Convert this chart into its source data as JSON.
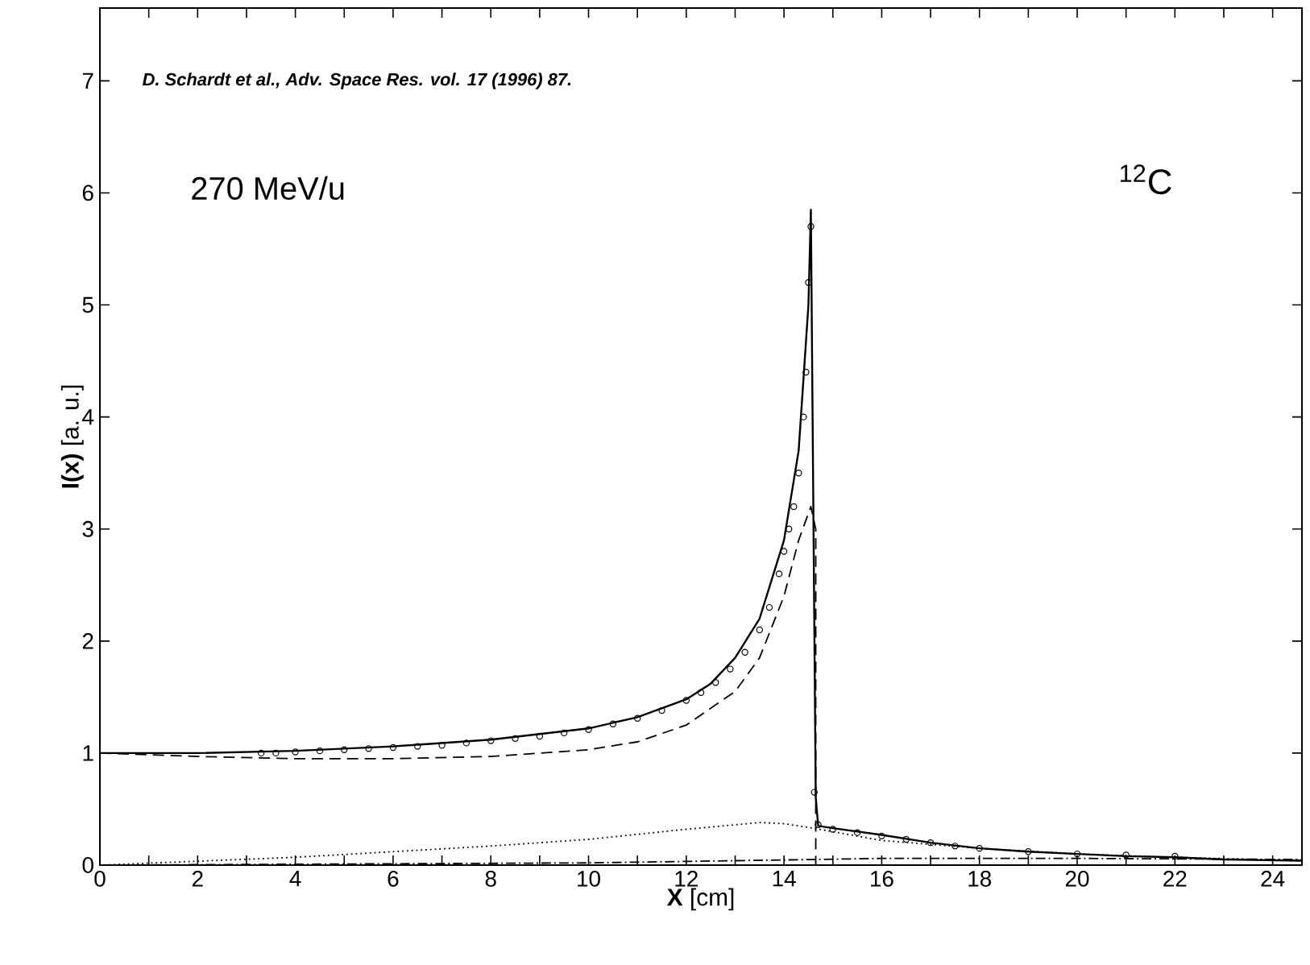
{
  "chart_data": {
    "type": "line",
    "xlabel": "**X** [cm]",
    "ylabel": "**I(x)** [a. u.]",
    "annotations": [
      "D. Schardt et al., Adv. Space Res. vol. 17 (1996) 87.",
      "270 MeV/u",
      "$^{12}$C"
    ],
    "xlim": [
      0,
      24.6
    ],
    "ylim": [
      0,
      7.65
    ],
    "xticks": [
      0,
      {
        "value": 1,
        "label": null
      },
      2,
      {
        "value": 3,
        "label": null
      },
      4,
      {
        "value": 5,
        "label": null
      },
      6,
      {
        "value": 7,
        "label": null
      },
      8,
      {
        "value": 9,
        "label": null
      },
      10,
      {
        "value": 11,
        "label": null
      },
      12,
      {
        "value": 13,
        "label": null
      },
      14,
      {
        "value": 15,
        "label": null
      },
      16,
      {
        "value": 17,
        "label": null
      },
      18,
      {
        "value": 19,
        "label": null
      },
      20,
      {
        "value": 21,
        "label": null
      },
      22,
      {
        "value": 23,
        "label": null
      },
      24
    ],
    "yticks": [
      0,
      1,
      2,
      3,
      4,
      5,
      6,
      7
    ],
    "series": [
      {
        "line_style": "solid",
        "marker": "none",
        "color": "#000000",
        "x": [
          0,
          2,
          4,
          6,
          8,
          10,
          11,
          12,
          12.5,
          13,
          13.5,
          14,
          14.3,
          14.5,
          14.55,
          14.65,
          14.7,
          15,
          16,
          17,
          18,
          19,
          20,
          21,
          22,
          23,
          24.6
        ],
        "values": [
          1.0,
          1.0,
          1.02,
          1.06,
          1.12,
          1.22,
          1.32,
          1.48,
          1.62,
          1.85,
          2.2,
          2.9,
          3.7,
          5.0,
          5.85,
          0.6,
          0.35,
          0.33,
          0.27,
          0.2,
          0.15,
          0.12,
          0.1,
          0.08,
          0.07,
          0.05,
          0.04
        ]
      },
      {
        "type": "scatter",
        "marker": "circle",
        "color": "#000000",
        "x": [
          3.3,
          3.6,
          4,
          4.5,
          5,
          5.5,
          6,
          6.5,
          7,
          7.5,
          8,
          8.5,
          9,
          9.5,
          10,
          10.5,
          11,
          11.5,
          12,
          12.3,
          12.6,
          12.9,
          13.2,
          13.5,
          13.7,
          13.9,
          14.0,
          14.1,
          14.2,
          14.3,
          14.4,
          14.45,
          14.5,
          14.55,
          14.62,
          14.7,
          15,
          15.5,
          16,
          16.5,
          17,
          17.5,
          18,
          19,
          20,
          21,
          22
        ],
        "values": [
          1.0,
          1.0,
          1.01,
          1.02,
          1.03,
          1.04,
          1.05,
          1.06,
          1.07,
          1.09,
          1.11,
          1.13,
          1.15,
          1.18,
          1.21,
          1.26,
          1.31,
          1.38,
          1.47,
          1.54,
          1.63,
          1.75,
          1.9,
          2.1,
          2.3,
          2.6,
          2.8,
          3.0,
          3.2,
          3.5,
          4.0,
          4.4,
          5.2,
          5.7,
          0.65,
          0.36,
          0.32,
          0.29,
          0.26,
          0.23,
          0.2,
          0.17,
          0.15,
          0.12,
          0.1,
          0.09,
          0.08
        ]
      },
      {
        "line_style": "dashed",
        "marker": "none",
        "color": "#000000",
        "x": [
          0,
          2,
          4,
          6,
          8,
          10,
          11,
          12,
          13,
          13.5,
          14,
          14.3,
          14.55,
          14.65,
          14.65
        ],
        "values": [
          1.0,
          0.97,
          0.95,
          0.95,
          0.97,
          1.03,
          1.1,
          1.25,
          1.55,
          1.85,
          2.4,
          2.9,
          3.2,
          3.0,
          0
        ]
      },
      {
        "line_style": "dotted",
        "marker": "none",
        "color": "#000000",
        "x": [
          0,
          4,
          8,
          10,
          12,
          13.5,
          14,
          14.6,
          16,
          18,
          20,
          22,
          24.6
        ],
        "values": [
          0,
          0.07,
          0.17,
          0.23,
          0.32,
          0.38,
          0.37,
          0.33,
          0.22,
          0.15,
          0.1,
          0.07,
          0.04
        ]
      },
      {
        "line_style": "dashdot",
        "marker": "none",
        "color": "#000000",
        "x": [
          0,
          10,
          14.6,
          16,
          20,
          24.6
        ],
        "values": [
          0,
          0.02,
          0.05,
          0.06,
          0.06,
          0.05
        ]
      }
    ]
  }
}
